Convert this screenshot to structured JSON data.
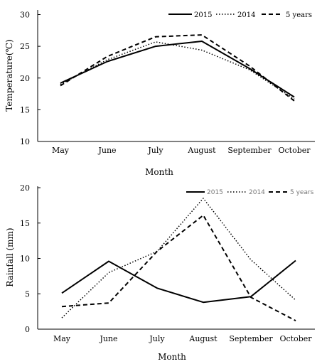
{
  "chart_data": [
    {
      "type": "line",
      "categories": [
        "May",
        "June",
        "July",
        "August",
        "September",
        "October"
      ],
      "series": [
        {
          "name": "2015",
          "style": "solid",
          "values": [
            19.2,
            22.6,
            25.0,
            25.8,
            21.5,
            17.0
          ]
        },
        {
          "name": "2014",
          "style": "dotted",
          "values": [
            19.0,
            22.9,
            25.7,
            24.4,
            21.3,
            16.7
          ]
        },
        {
          "name": "5 years",
          "style": "dashed",
          "values": [
            18.8,
            23.4,
            26.5,
            26.8,
            21.9,
            16.4
          ]
        }
      ],
      "xlabel": "Month",
      "ylabel": "Temperature(℃)",
      "ylim": [
        10,
        30
      ],
      "yticks": [
        10,
        15,
        20,
        25,
        30
      ],
      "legend_position": "top-right",
      "grid": false
    },
    {
      "type": "line",
      "categories": [
        "May",
        "June",
        "July",
        "August",
        "September",
        "October"
      ],
      "series": [
        {
          "name": "2015",
          "style": "solid",
          "values": [
            5.1,
            9.6,
            5.8,
            3.8,
            4.6,
            9.7
          ]
        },
        {
          "name": "2014",
          "style": "dotted",
          "values": [
            1.6,
            8.0,
            11.0,
            18.5,
            9.8,
            4.1
          ]
        },
        {
          "name": "5 years",
          "style": "dashed",
          "values": [
            3.2,
            3.7,
            11.0,
            16.1,
            4.5,
            1.2
          ]
        }
      ],
      "xlabel": "Month",
      "ylabel": "Rainfall (mm)",
      "ylim": [
        0,
        20
      ],
      "yticks": [
        0,
        5,
        10,
        15,
        20
      ],
      "legend_position": "top-right",
      "grid": false
    }
  ]
}
